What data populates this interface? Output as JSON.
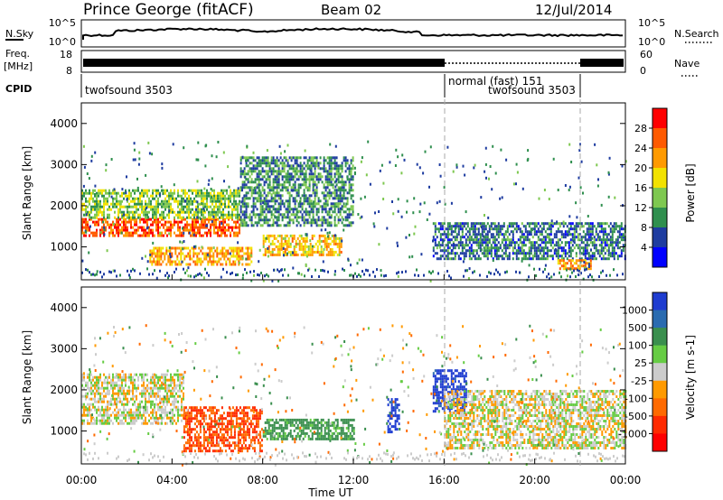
{
  "header": {
    "station": "Prince George (fitACF)",
    "beam": "Beam 02",
    "date": "12/Jul/2014"
  },
  "top_panels": {
    "nsky_label": "N.Sky",
    "nsky_ticks": [
      "10^5",
      "10^0"
    ],
    "nsearch_label": "N.Search",
    "nsearch_ticks": [
      "10^5",
      "10^0"
    ],
    "freq_label": "Freq.",
    "freq_unit": "[MHz]",
    "freq_ticks": [
      "18",
      "8"
    ],
    "nave_label": "Nave",
    "nave_ticks": [
      "60",
      "0"
    ],
    "cpid_label": "CPID",
    "cpid_segments": [
      {
        "label": "twofsound 3503",
        "start_hour": 0,
        "end_hour": 16
      },
      {
        "label": "normal (fast) 151",
        "start_hour": 16,
        "end_hour": 22
      },
      {
        "label": "twofsound 3503",
        "start_hour": 16,
        "end_hour": 22
      }
    ]
  },
  "axes": {
    "ylabel": "Slant Range [km]",
    "yticks": [
      "4000",
      "3000",
      "2000",
      "1000"
    ],
    "xlabel": "Time UT",
    "xticks": [
      "00:00",
      "04:00",
      "08:00",
      "12:00",
      "16:00",
      "20:00",
      "00:00"
    ]
  },
  "power_scale": {
    "label": "Power [dB]",
    "ticks": [
      "28",
      "24",
      "20",
      "16",
      "12",
      "8",
      "4"
    ],
    "colors": [
      "#ff0000",
      "#ff5a00",
      "#ff9a00",
      "#f2e200",
      "#7ec850",
      "#2f8f4e",
      "#1e3ca0",
      "#0000ff"
    ]
  },
  "velocity_scale": {
    "label": "Velocity [m s-1]",
    "ticks": [
      "1000",
      "500",
      "100",
      "25",
      "-25",
      "-100",
      "-500",
      "-1000"
    ],
    "colors": [
      "#1e3cd0",
      "#2a6bb0",
      "#3a8f4e",
      "#66cc44",
      "#cccccc",
      "#ff9a00",
      "#ff6a00",
      "#ff2a00",
      "#ff0000"
    ]
  },
  "chart_data": [
    {
      "type": "heatmap",
      "title": "Power [dB]",
      "xlabel": "Time UT",
      "ylabel": "Slant Range [km]",
      "xlim_hours": [
        0,
        24
      ],
      "ylim_km": [
        200,
        4500
      ],
      "color_range": [
        0,
        32
      ],
      "features": [
        {
          "t": [
            0,
            7
          ],
          "range": [
            1300,
            1700
          ],
          "power": 26
        },
        {
          "t": [
            0,
            7
          ],
          "range": [
            1700,
            2400
          ],
          "power": 14
        },
        {
          "t": [
            3,
            7.5
          ],
          "range": [
            600,
            1000
          ],
          "power": 22
        },
        {
          "t": [
            8,
            11.5
          ],
          "range": [
            800,
            1300
          ],
          "power": 20
        },
        {
          "t": [
            7,
            12
          ],
          "range": [
            1500,
            3200
          ],
          "power": 10
        },
        {
          "t": [
            15.5,
            24
          ],
          "range": [
            700,
            1600
          ],
          "power": 8
        },
        {
          "t": [
            21,
            22.5
          ],
          "range": [
            500,
            700
          ],
          "power": 22
        }
      ]
    },
    {
      "type": "heatmap",
      "title": "Velocity [m s-1]",
      "xlabel": "Time UT",
      "ylabel": "Slant Range [km]",
      "xlim_hours": [
        0,
        24
      ],
      "ylim_km": [
        200,
        4500
      ],
      "color_range": [
        -1000,
        1000
      ],
      "features": [
        {
          "t": [
            0,
            4.5
          ],
          "range": [
            1200,
            2400
          ],
          "velocity": 0
        },
        {
          "t": [
            4.5,
            8
          ],
          "range": [
            500,
            1600
          ],
          "velocity": -300
        },
        {
          "t": [
            8,
            12
          ],
          "range": [
            800,
            1300
          ],
          "velocity": 100
        },
        {
          "t": [
            13.5,
            14
          ],
          "range": [
            1000,
            1800
          ],
          "velocity": 800
        },
        {
          "t": [
            15.5,
            17
          ],
          "range": [
            1500,
            2500
          ],
          "velocity": 800
        },
        {
          "t": [
            16,
            24
          ],
          "range": [
            600,
            2000
          ],
          "velocity": 0
        }
      ]
    }
  ]
}
